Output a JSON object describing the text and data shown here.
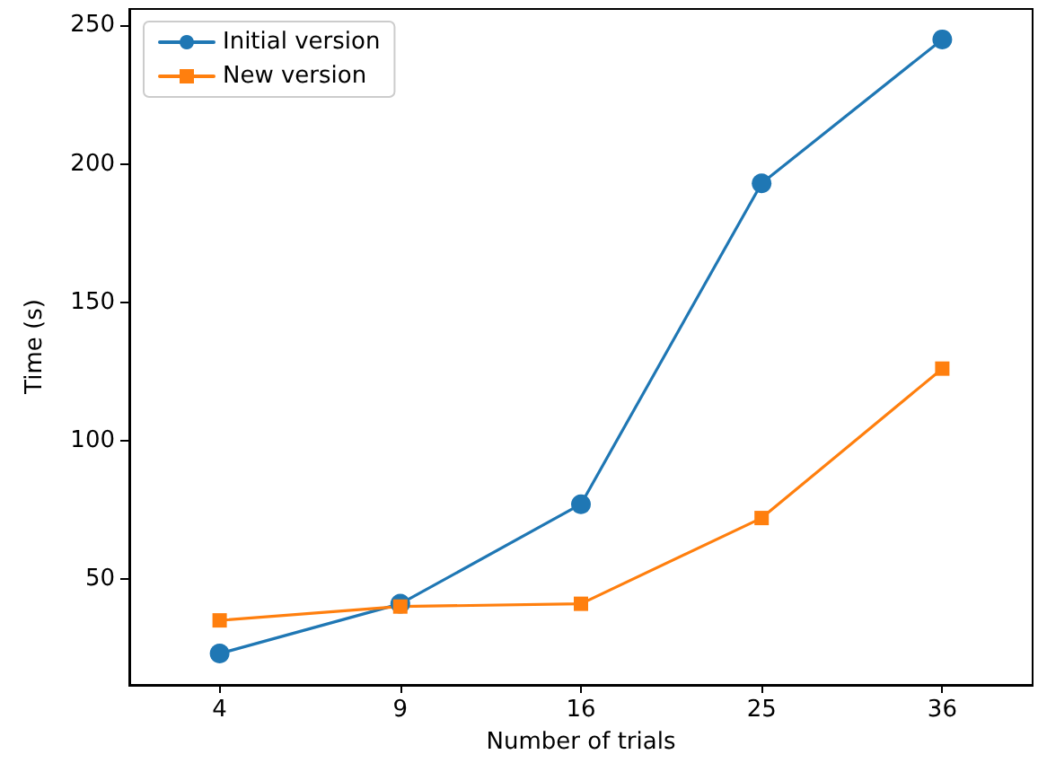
{
  "chart_data": {
    "type": "line",
    "xlabel": "Number of trials",
    "ylabel": "Time (s)",
    "categories": [
      "4",
      "9",
      "16",
      "25",
      "36"
    ],
    "series": [
      {
        "name": "Initial version",
        "color": "#1f77b4",
        "marker": "circle",
        "values": [
          23,
          41,
          77,
          193,
          245
        ]
      },
      {
        "name": "New version",
        "color": "#ff7f0e",
        "marker": "square",
        "values": [
          35,
          40,
          41,
          72,
          126
        ]
      }
    ],
    "ylim": [
      12,
      256
    ],
    "yticks": [
      50,
      100,
      150,
      200,
      250
    ],
    "grid": false,
    "legend": "top left"
  }
}
